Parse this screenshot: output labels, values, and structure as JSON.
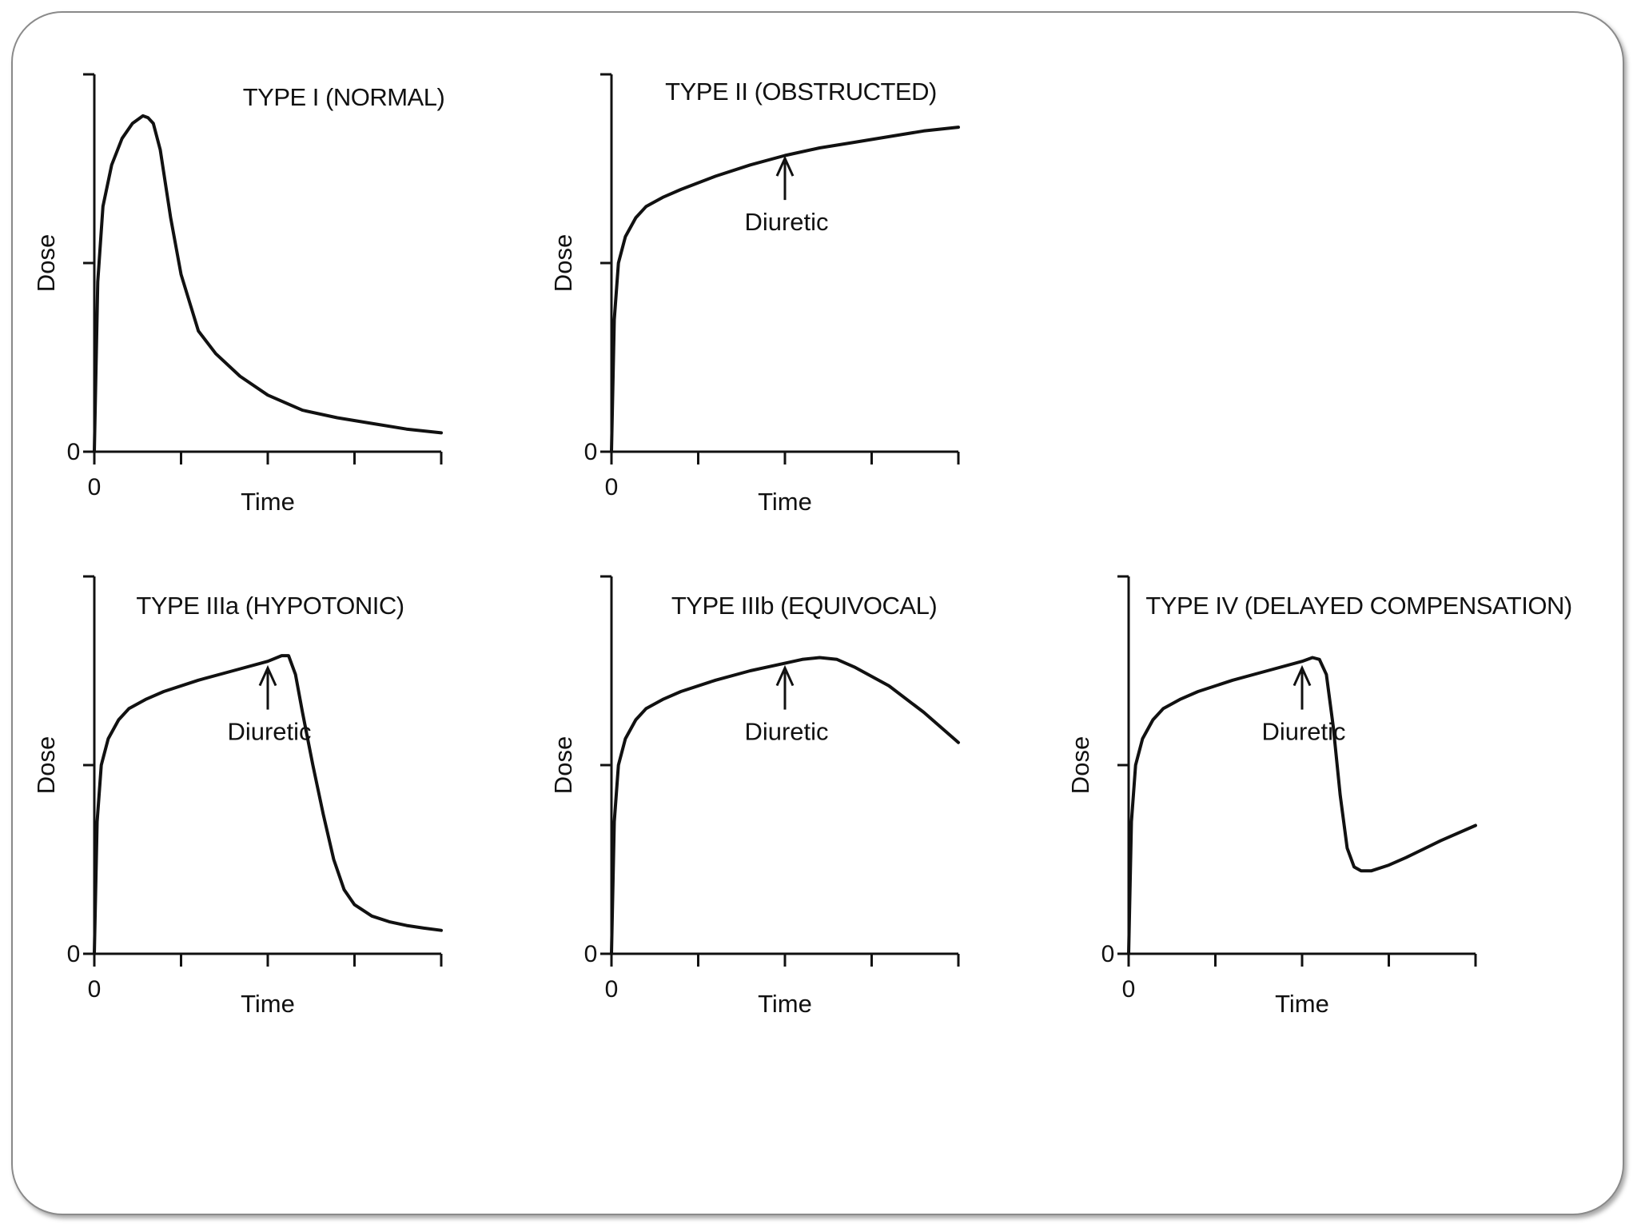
{
  "chart_data": [
    {
      "type": "line",
      "title": "TYPE I (NORMAL)",
      "xlabel": "Time",
      "ylabel": "Dose",
      "x_tick_label": "0",
      "y_tick_label": "0",
      "xlim": [
        0,
        1
      ],
      "ylim": [
        0,
        1
      ],
      "annotation": null,
      "x": [
        0,
        0.01,
        0.025,
        0.05,
        0.08,
        0.11,
        0.14,
        0.155,
        0.17,
        0.19,
        0.22,
        0.25,
        0.28,
        0.3,
        0.35,
        0.42,
        0.5,
        0.6,
        0.7,
        0.8,
        0.9,
        1.0
      ],
      "y": [
        0,
        0.45,
        0.65,
        0.76,
        0.83,
        0.87,
        0.89,
        0.885,
        0.87,
        0.8,
        0.62,
        0.47,
        0.38,
        0.32,
        0.26,
        0.2,
        0.15,
        0.11,
        0.09,
        0.075,
        0.06,
        0.05
      ]
    },
    {
      "type": "line",
      "title": "TYPE II (OBSTRUCTED)",
      "xlabel": "Time",
      "ylabel": "Dose",
      "x_tick_label": "0",
      "y_tick_label": "0",
      "xlim": [
        0,
        1
      ],
      "ylim": [
        0,
        1
      ],
      "annotation": {
        "text": "Diuretic",
        "x": 0.5,
        "y": 0.79
      },
      "x": [
        0,
        0.008,
        0.02,
        0.04,
        0.07,
        0.1,
        0.15,
        0.2,
        0.3,
        0.4,
        0.5,
        0.6,
        0.7,
        0.8,
        0.9,
        1.0
      ],
      "y": [
        0,
        0.35,
        0.5,
        0.57,
        0.62,
        0.65,
        0.675,
        0.695,
        0.73,
        0.76,
        0.785,
        0.805,
        0.82,
        0.835,
        0.85,
        0.86
      ]
    },
    {
      "type": "line",
      "title": "TYPE IIIa (HYPOTONIC)",
      "xlabel": "Time",
      "ylabel": "Dose",
      "x_tick_label": "0",
      "y_tick_label": "0",
      "xlim": [
        0,
        1
      ],
      "ylim": [
        0,
        1
      ],
      "annotation": {
        "text": "Diuretic",
        "x": 0.5,
        "y": 0.77
      },
      "x": [
        0,
        0.008,
        0.02,
        0.04,
        0.07,
        0.1,
        0.15,
        0.2,
        0.3,
        0.4,
        0.5,
        0.54,
        0.56,
        0.58,
        0.6,
        0.63,
        0.66,
        0.69,
        0.72,
        0.75,
        0.8,
        0.85,
        0.9,
        0.95,
        1.0
      ],
      "y": [
        0,
        0.35,
        0.5,
        0.57,
        0.62,
        0.65,
        0.675,
        0.695,
        0.725,
        0.75,
        0.775,
        0.79,
        0.79,
        0.74,
        0.64,
        0.5,
        0.37,
        0.25,
        0.17,
        0.13,
        0.1,
        0.085,
        0.075,
        0.068,
        0.062
      ]
    },
    {
      "type": "line",
      "title": "TYPE IIIb (EQUIVOCAL)",
      "xlabel": "Time",
      "ylabel": "Dose",
      "x_tick_label": "0",
      "y_tick_label": "0",
      "xlim": [
        0,
        1
      ],
      "ylim": [
        0,
        1
      ],
      "annotation": {
        "text": "Diuretic",
        "x": 0.5,
        "y": 0.77
      },
      "x": [
        0,
        0.008,
        0.02,
        0.04,
        0.07,
        0.1,
        0.15,
        0.2,
        0.3,
        0.4,
        0.5,
        0.55,
        0.6,
        0.65,
        0.7,
        0.8,
        0.9,
        1.0
      ],
      "y": [
        0,
        0.35,
        0.5,
        0.57,
        0.62,
        0.65,
        0.675,
        0.695,
        0.725,
        0.75,
        0.77,
        0.78,
        0.785,
        0.78,
        0.76,
        0.71,
        0.64,
        0.56
      ]
    },
    {
      "type": "line",
      "title": "TYPE IV (DELAYED COMPENSATION)",
      "xlabel": "Time",
      "ylabel": "Dose",
      "x_tick_label": "0",
      "y_tick_label": "0",
      "xlim": [
        0,
        1
      ],
      "ylim": [
        0,
        1
      ],
      "annotation": {
        "text": "Diuretic",
        "x": 0.5,
        "y": 0.77
      },
      "x": [
        0,
        0.008,
        0.02,
        0.04,
        0.07,
        0.1,
        0.15,
        0.2,
        0.3,
        0.4,
        0.5,
        0.53,
        0.55,
        0.57,
        0.59,
        0.61,
        0.63,
        0.65,
        0.67,
        0.7,
        0.75,
        0.8,
        0.9,
        1.0
      ],
      "y": [
        0,
        0.35,
        0.5,
        0.57,
        0.62,
        0.65,
        0.675,
        0.695,
        0.725,
        0.75,
        0.775,
        0.785,
        0.78,
        0.74,
        0.6,
        0.42,
        0.28,
        0.23,
        0.22,
        0.22,
        0.235,
        0.255,
        0.3,
        0.34
      ]
    }
  ]
}
